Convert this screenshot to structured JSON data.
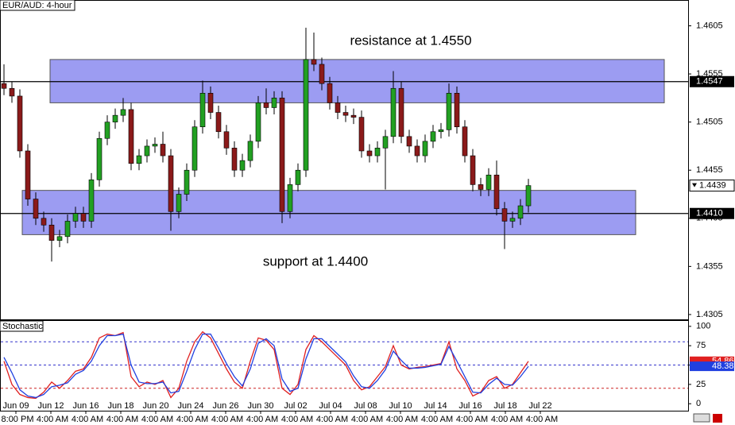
{
  "chart_data": [
    {
      "type": "candlestick",
      "title": "EUR/AUD: 4-hour",
      "annotations": [
        "resistance at 1.4550",
        "support at 1.4400"
      ],
      "ylim": [
        1.43,
        1.4631
      ],
      "yticks": [
        1.4305,
        1.4355,
        1.4405,
        1.4455,
        1.4505,
        1.4555,
        1.4605
      ],
      "up_color": "#22a022",
      "down_color": "#8b1a1a",
      "zones": [
        {
          "from": 1.4525,
          "to": 1.457
        },
        {
          "from": 1.4388,
          "to": 1.4434
        }
      ],
      "zone_color": "#9c9cf2",
      "lines": [
        {
          "value": 1.4547,
          "label": "1.4547"
        },
        {
          "value": 1.441,
          "label": "1.4410"
        }
      ],
      "open": [
        1.4545,
        1.454,
        1.4532,
        1.4475,
        1.4425,
        1.4405,
        1.4398,
        1.4382,
        1.4386,
        1.4402,
        1.441,
        1.4402,
        1.4445,
        1.4488,
        1.4505,
        1.4512,
        1.4518,
        1.4462,
        1.447,
        1.448,
        1.4482,
        1.447,
        1.4412,
        1.443,
        1.4455,
        1.45,
        1.4535,
        1.4515,
        1.4495,
        1.4478,
        1.4455,
        1.4465,
        1.4485,
        1.4525,
        1.452,
        1.453,
        1.4412,
        1.444,
        1.4455,
        1.457,
        1.4565,
        1.4545,
        1.4525,
        1.4515,
        1.4512,
        1.451,
        1.4475,
        1.447,
        1.4478,
        1.449,
        1.454,
        1.449,
        1.448,
        1.447,
        1.4485,
        1.4495,
        1.4497,
        1.4535,
        1.45,
        1.447,
        1.444,
        1.4435,
        1.445,
        1.4415,
        1.4402,
        1.4405,
        1.4418
      ],
      "high": [
        1.4565,
        1.4547,
        1.4539,
        1.4482,
        1.4432,
        1.4412,
        1.4405,
        1.4393,
        1.4409,
        1.4417,
        1.4417,
        1.4452,
        1.4495,
        1.4512,
        1.4519,
        1.453,
        1.4525,
        1.4477,
        1.4487,
        1.4489,
        1.4495,
        1.4477,
        1.4437,
        1.4462,
        1.4507,
        1.4548,
        1.4542,
        1.4522,
        1.4502,
        1.4485,
        1.4472,
        1.4492,
        1.4532,
        1.454,
        1.4537,
        1.4537,
        1.4447,
        1.4462,
        1.4603,
        1.4598,
        1.4572,
        1.4552,
        1.4532,
        1.4522,
        1.4519,
        1.4517,
        1.4482,
        1.4485,
        1.4497,
        1.4558,
        1.4547,
        1.4497,
        1.4487,
        1.4492,
        1.4502,
        1.4504,
        1.4545,
        1.4542,
        1.4507,
        1.4477,
        1.4447,
        1.4457,
        1.4465,
        1.4422,
        1.4412,
        1.4425,
        1.4446
      ],
      "low": [
        1.4533,
        1.4525,
        1.4468,
        1.4418,
        1.4398,
        1.4391,
        1.436,
        1.4375,
        1.4379,
        1.4395,
        1.4395,
        1.4395,
        1.4438,
        1.4481,
        1.4498,
        1.4505,
        1.4455,
        1.4455,
        1.4463,
        1.4473,
        1.4463,
        1.4392,
        1.4405,
        1.4423,
        1.4448,
        1.4493,
        1.4508,
        1.4488,
        1.4471,
        1.4448,
        1.4448,
        1.4458,
        1.4478,
        1.4513,
        1.4513,
        1.44,
        1.4405,
        1.4433,
        1.4448,
        1.4558,
        1.4538,
        1.4518,
        1.4508,
        1.4505,
        1.4503,
        1.4468,
        1.4463,
        1.4463,
        1.4435,
        1.4483,
        1.4483,
        1.4473,
        1.4463,
        1.4463,
        1.4478,
        1.4488,
        1.449,
        1.4493,
        1.4463,
        1.4433,
        1.4428,
        1.4428,
        1.4408,
        1.4373,
        1.4395,
        1.4398,
        1.4411
      ],
      "close": [
        1.454,
        1.4532,
        1.4475,
        1.4425,
        1.4405,
        1.4398,
        1.4382,
        1.4386,
        1.4402,
        1.441,
        1.4402,
        1.4445,
        1.4488,
        1.4505,
        1.4512,
        1.4518,
        1.4462,
        1.447,
        1.448,
        1.4482,
        1.447,
        1.4412,
        1.443,
        1.4455,
        1.45,
        1.4535,
        1.4515,
        1.4495,
        1.4478,
        1.4455,
        1.4465,
        1.4485,
        1.4525,
        1.452,
        1.453,
        1.4412,
        1.444,
        1.4455,
        1.457,
        1.4565,
        1.4545,
        1.4525,
        1.4515,
        1.4512,
        1.451,
        1.4475,
        1.447,
        1.4478,
        1.449,
        1.454,
        1.449,
        1.448,
        1.447,
        1.4485,
        1.4495,
        1.4497,
        1.4535,
        1.45,
        1.447,
        1.444,
        1.4435,
        1.445,
        1.4415,
        1.4402,
        1.4405,
        1.4418,
        1.4439
      ]
    },
    {
      "type": "line",
      "title": "Stochastic",
      "ylim": [
        -9,
        107
      ],
      "yticks": [
        0,
        25,
        50,
        75,
        100
      ],
      "levels": [
        80,
        50,
        20
      ],
      "level_colors": [
        "#3333cc",
        "#3333cc",
        "#cc2222"
      ],
      "series": [
        {
          "color": "#e02020",
          "values": [
            55,
            25,
            12,
            8,
            7,
            15,
            28,
            20,
            30,
            42,
            45,
            60,
            85,
            90,
            88,
            92,
            35,
            22,
            28,
            25,
            30,
            8,
            20,
            55,
            80,
            93,
            85,
            65,
            45,
            28,
            20,
            55,
            85,
            82,
            70,
            20,
            12,
            25,
            70,
            88,
            80,
            70,
            60,
            50,
            30,
            18,
            22,
            35,
            48,
            75,
            50,
            45,
            47,
            48,
            50,
            52,
            80,
            45,
            30,
            10,
            15,
            30,
            35,
            20,
            25,
            40,
            54.86
          ]
        },
        {
          "color": "#2040e0",
          "values": [
            60,
            40,
            18,
            10,
            8,
            12,
            22,
            24,
            27,
            38,
            43,
            55,
            75,
            88,
            88,
            90,
            50,
            28,
            26,
            26,
            28,
            14,
            16,
            42,
            70,
            90,
            90,
            72,
            52,
            35,
            23,
            45,
            78,
            84,
            75,
            32,
            16,
            20,
            58,
            84,
            84,
            74,
            64,
            54,
            36,
            22,
            20,
            30,
            44,
            68,
            56,
            46,
            46,
            47,
            49,
            51,
            74,
            55,
            35,
            15,
            14,
            25,
            33,
            25,
            24,
            35,
            48.38
          ]
        }
      ],
      "xlabels": [
        "Jun 09",
        "Jun 12",
        "Jun 16",
        "Jun 18",
        "Jun 20",
        "Jun 24",
        "Jun 26",
        "Jun 30",
        "Jul 02",
        "Jul 04",
        "Jul 08",
        "Jul 10",
        "Jul 14",
        "Jul 16",
        "Jul 18",
        "Jul 22"
      ],
      "xsublabels": [
        "8:00 PM",
        "4:00 AM",
        "4:00 AM",
        "4:00 AM",
        "4:00 AM",
        "4:00 AM",
        "4:00 AM",
        "4:00 AM",
        "4:00 AM",
        "4:00 AM",
        "4:00 AM",
        "4:00 AM",
        "4:00 AM",
        "4:00 AM",
        "4:00 AM",
        "4:00 AM"
      ]
    }
  ]
}
